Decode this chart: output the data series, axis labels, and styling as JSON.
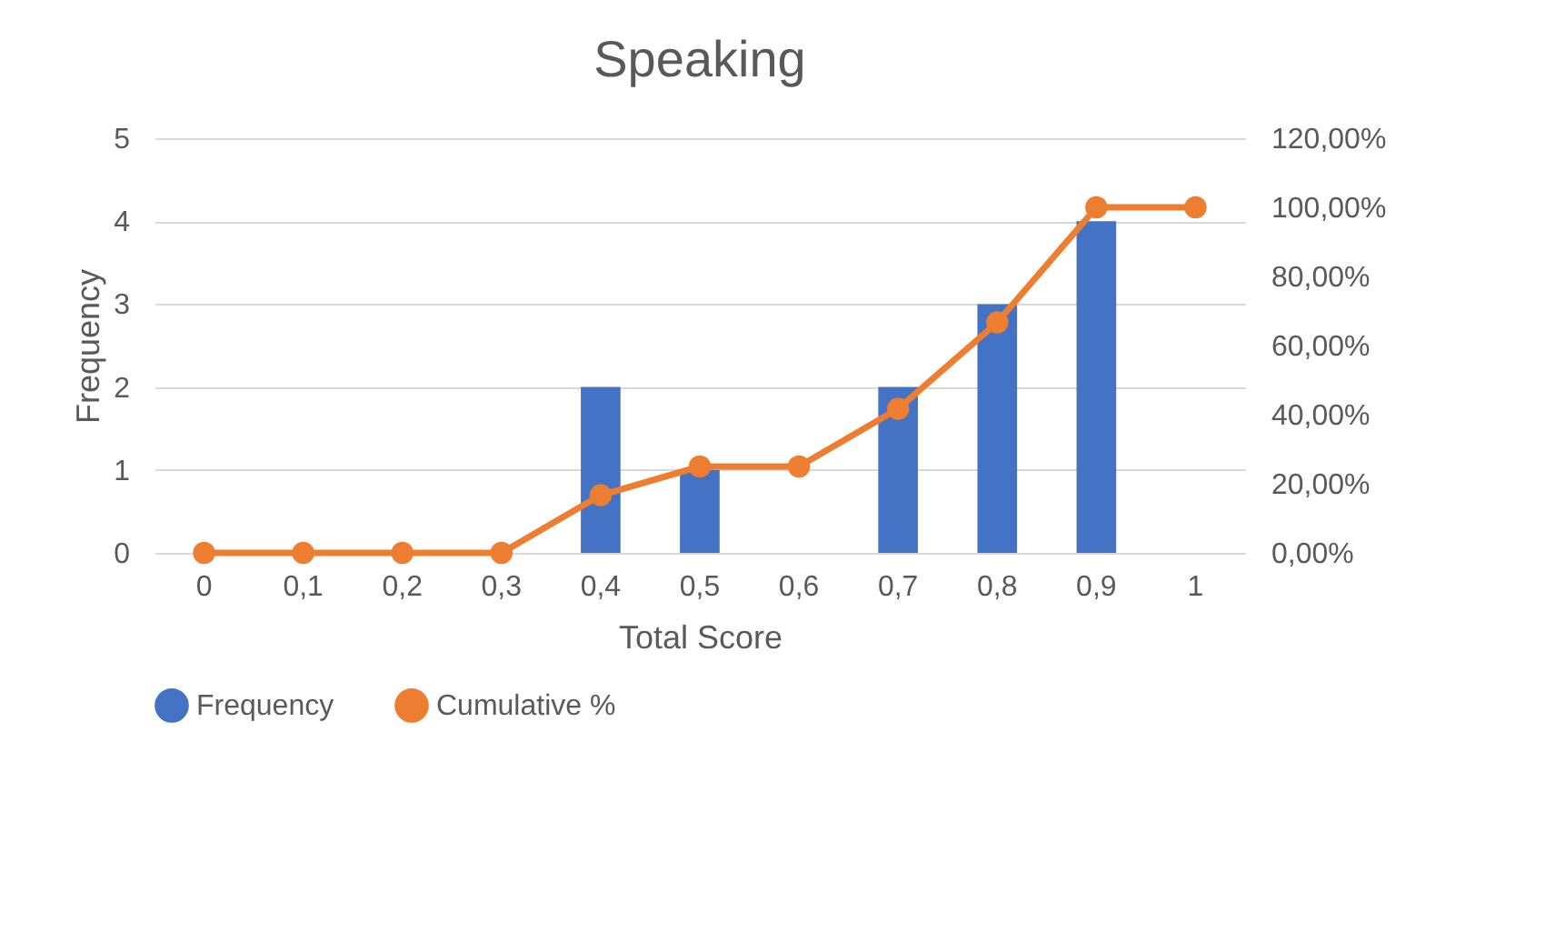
{
  "chart_data": {
    "type": "bar",
    "title": "Speaking",
    "xlabel": "Total Score",
    "ylabel": "Frequency",
    "categories": [
      "0",
      "0,1",
      "0,2",
      "0,3",
      "0,4",
      "0,5",
      "0,6",
      "0,7",
      "0,8",
      "0,9",
      "1"
    ],
    "series": [
      {
        "name": "Frequency",
        "color": "#4472c4",
        "values": [
          0,
          0,
          0,
          0,
          2,
          1,
          0,
          2,
          3,
          4,
          0
        ]
      },
      {
        "name": "Cumulative %",
        "type": "line",
        "axis": "y2",
        "color": "#ed7d31",
        "values": [
          0,
          0,
          0,
          0,
          16.7,
          25,
          25,
          41.7,
          66.7,
          100,
          100
        ]
      }
    ],
    "ylim": [
      0,
      5
    ],
    "yticks": [
      0,
      1,
      2,
      3,
      4,
      5
    ],
    "y2lim": [
      0,
      120
    ],
    "y2ticks": [
      {
        "value": 0,
        "label": "0,00%"
      },
      {
        "value": 20,
        "label": "20,00%"
      },
      {
        "value": 40,
        "label": "40,00%"
      },
      {
        "value": 60,
        "label": "60,00%"
      },
      {
        "value": 80,
        "label": "80,00%"
      },
      {
        "value": 100,
        "label": "100,00%"
      },
      {
        "value": 120,
        "label": "120,00%"
      }
    ],
    "grid": "y",
    "legend": "bottom",
    "marker": "circle",
    "line_style": "solid"
  }
}
